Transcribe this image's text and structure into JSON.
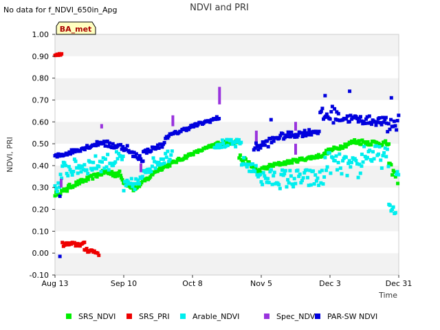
{
  "chart_data": {
    "type": "scatter",
    "title": "NDVI and PRI",
    "top_note": "No data for f_NDVI_650in_Apg",
    "site_badge": "BA_met",
    "xlabel": "Time",
    "ylabel": "NDVI, PRI",
    "x_domain_days": [
      0,
      140
    ],
    "xticks": [
      {
        "label": "Aug 13",
        "day": 0
      },
      {
        "label": "Sep 10",
        "day": 28
      },
      {
        "label": "Oct 8",
        "day": 56
      },
      {
        "label": "Nov 5",
        "day": 84
      },
      {
        "label": "Dec 3",
        "day": 112
      },
      {
        "label": "Dec 31",
        "day": 140
      }
    ],
    "ylim": [
      -0.1,
      1.0
    ],
    "yticks": [
      "-0.10",
      "0.00",
      "0.10",
      "0.20",
      "0.30",
      "0.40",
      "0.50",
      "0.60",
      "0.70",
      "0.80",
      "0.90",
      "1.00"
    ],
    "grid": "horizontal alternating bands",
    "legend_position": "bottom",
    "series": [
      {
        "name": "SRS_NDVI",
        "color": "#00ee00",
        "segments": [
          {
            "start": 0,
            "end": 5,
            "v0": 0.27,
            "v1": 0.29,
            "jitter": 0.01
          },
          {
            "start": 5,
            "end": 20,
            "v0": 0.3,
            "v1": 0.37,
            "jitter": 0.01
          },
          {
            "start": 20,
            "end": 27,
            "v0": 0.37,
            "v1": 0.36,
            "jitter": 0.015
          },
          {
            "start": 27,
            "end": 33,
            "v0": 0.34,
            "v1": 0.29,
            "jitter": 0.015
          },
          {
            "start": 33,
            "end": 40,
            "v0": 0.3,
            "v1": 0.36,
            "jitter": 0.01
          },
          {
            "start": 40,
            "end": 55,
            "v0": 0.37,
            "v1": 0.45,
            "jitter": 0.008
          },
          {
            "start": 55,
            "end": 66,
            "v0": 0.45,
            "v1": 0.5,
            "jitter": 0.006
          },
          {
            "start": 66,
            "end": 75,
            "v0": 0.5,
            "v1": 0.51,
            "jitter": 0.008
          },
          {
            "start": 75,
            "end": 82,
            "v0": 0.44,
            "v1": 0.38,
            "jitter": 0.015
          },
          {
            "start": 82,
            "end": 88,
            "v0": 0.37,
            "v1": 0.4,
            "jitter": 0.01
          },
          {
            "start": 88,
            "end": 110,
            "v0": 0.4,
            "v1": 0.45,
            "jitter": 0.008
          },
          {
            "start": 110,
            "end": 122,
            "v0": 0.46,
            "v1": 0.51,
            "jitter": 0.01
          },
          {
            "start": 122,
            "end": 136,
            "v0": 0.51,
            "v1": 0.5,
            "jitter": 0.012
          },
          {
            "start": 136,
            "end": 140,
            "v0": 0.4,
            "v1": 0.33,
            "jitter": 0.02
          }
        ]
      },
      {
        "name": "SRS_PRI",
        "color": "#ee0000",
        "segments": [
          {
            "start": 0,
            "end": 3,
            "v0": 0.905,
            "v1": 0.91,
            "jitter": 0.004
          },
          {
            "start": 3,
            "end": 12,
            "v0": 0.04,
            "v1": 0.04,
            "jitter": 0.01
          },
          {
            "start": 12,
            "end": 18,
            "v0": 0.02,
            "v1": 0.0,
            "jitter": 0.012
          }
        ]
      },
      {
        "name": "Arable_NDVI",
        "color": "#00eeee",
        "segments": [
          {
            "start": 0,
            "end": 3,
            "v0": 0.28,
            "v1": 0.36,
            "jitter": 0.03
          },
          {
            "start": 3,
            "end": 28,
            "v0": 0.38,
            "v1": 0.43,
            "jitter": 0.04
          },
          {
            "start": 28,
            "end": 36,
            "v0": 0.3,
            "v1": 0.33,
            "jitter": 0.03
          },
          {
            "start": 36,
            "end": 48,
            "v0": 0.38,
            "v1": 0.46,
            "jitter": 0.03
          },
          {
            "start": 65,
            "end": 76,
            "v0": 0.5,
            "v1": 0.5,
            "jitter": 0.02
          },
          {
            "start": 76,
            "end": 84,
            "v0": 0.42,
            "v1": 0.36,
            "jitter": 0.025
          },
          {
            "start": 84,
            "end": 110,
            "v0": 0.34,
            "v1": 0.34,
            "jitter": 0.045
          },
          {
            "start": 110,
            "end": 125,
            "v0": 0.42,
            "v1": 0.38,
            "jitter": 0.05
          },
          {
            "start": 125,
            "end": 136,
            "v0": 0.46,
            "v1": 0.43,
            "jitter": 0.05
          },
          {
            "start": 136,
            "end": 139,
            "v0": 0.22,
            "v1": 0.18,
            "jitter": 0.015
          },
          {
            "start": 139,
            "end": 140,
            "v0": 0.36,
            "v1": 0.36,
            "jitter": 0.02
          }
        ]
      },
      {
        "name": "Spec_NDVI",
        "color": "#9933dd",
        "bars": [
          {
            "day": 2.5,
            "low": 0.3,
            "high": 0.34
          },
          {
            "day": 19,
            "low": 0.57,
            "high": 0.59
          },
          {
            "day": 35,
            "low": 0.37,
            "high": 0.41
          },
          {
            "day": 48,
            "low": 0.58,
            "high": 0.63
          },
          {
            "day": 67,
            "low": 0.68,
            "high": 0.76
          },
          {
            "day": 82,
            "low": 0.49,
            "high": 0.56
          },
          {
            "day": 98,
            "low": 0.56,
            "high": 0.6
          },
          {
            "day": 98,
            "low": 0.45,
            "high": 0.5
          }
        ]
      },
      {
        "name": "PAR-SW NDVI",
        "color": "#0000dd",
        "segments": [
          {
            "start": 0,
            "end": 20,
            "v0": 0.44,
            "v1": 0.51,
            "jitter": 0.01
          },
          {
            "start": 20,
            "end": 30,
            "v0": 0.5,
            "v1": 0.48,
            "jitter": 0.015
          },
          {
            "start": 30,
            "end": 36,
            "v0": 0.46,
            "v1": 0.43,
            "jitter": 0.015
          },
          {
            "start": 36,
            "end": 45,
            "v0": 0.46,
            "v1": 0.5,
            "jitter": 0.01
          },
          {
            "start": 45,
            "end": 56,
            "v0": 0.53,
            "v1": 0.58,
            "jitter": 0.008
          },
          {
            "start": 56,
            "end": 67,
            "v0": 0.58,
            "v1": 0.62,
            "jitter": 0.008
          },
          {
            "start": 81,
            "end": 90,
            "v0": 0.48,
            "v1": 0.52,
            "jitter": 0.02
          },
          {
            "start": 90,
            "end": 108,
            "v0": 0.53,
            "v1": 0.56,
            "jitter": 0.015
          },
          {
            "start": 108,
            "end": 115,
            "v0": 0.62,
            "v1": 0.64,
            "jitter": 0.04
          },
          {
            "start": 115,
            "end": 135,
            "v0": 0.62,
            "v1": 0.6,
            "jitter": 0.02
          },
          {
            "start": 135,
            "end": 140,
            "v0": 0.58,
            "v1": 0.6,
            "jitter": 0.05
          }
        ],
        "outliers": [
          {
            "day": 2,
            "v": -0.015
          },
          {
            "day": 2,
            "v": 0.26
          },
          {
            "day": 88,
            "v": 0.61
          },
          {
            "day": 110,
            "v": 0.72
          },
          {
            "day": 120,
            "v": 0.74
          },
          {
            "day": 137,
            "v": 0.71
          }
        ]
      }
    ]
  }
}
